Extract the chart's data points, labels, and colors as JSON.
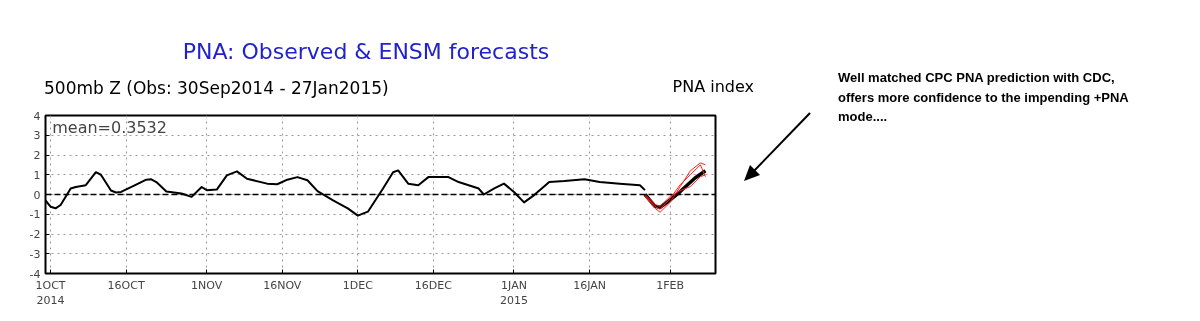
{
  "chart_data": {
    "type": "line",
    "title": "PNA: Observed & ENSM forecasts",
    "subtitle": "500mb Z (Obs: 30Sep2014 - 27Jan2015)",
    "annotations": [
      "mean=0.3532",
      "PNA index",
      "Well matched CPC PNA prediction with CDC, offers more confidence to the impending +PNA mode...."
    ],
    "x": [
      "2014-09-30",
      "2014-10-01",
      "2014-10-02",
      "2014-10-03",
      "2014-10-05",
      "2014-10-06",
      "2014-10-08",
      "2014-10-10",
      "2014-10-11",
      "2014-10-13",
      "2014-10-14",
      "2014-10-15",
      "2014-10-18",
      "2014-10-20",
      "2014-10-21",
      "2014-10-22",
      "2014-10-24",
      "2014-10-27",
      "2014-10-29",
      "2014-10-31",
      "2014-11-01",
      "2014-11-03",
      "2014-11-05",
      "2014-11-07",
      "2014-11-09",
      "2014-11-13",
      "2014-11-15",
      "2014-11-17",
      "2014-11-19",
      "2014-11-21",
      "2014-11-23",
      "2014-11-26",
      "2014-11-29",
      "2014-12-01",
      "2014-12-03",
      "2014-12-06",
      "2014-12-08",
      "2014-12-09",
      "2014-12-11",
      "2014-12-13",
      "2014-12-15",
      "2014-12-19",
      "2014-12-21",
      "2014-12-25",
      "2014-12-26",
      "2014-12-28",
      "2014-12-30",
      "2015-01-01",
      "2015-01-03",
      "2015-01-05",
      "2015-01-08",
      "2015-01-11",
      "2015-01-15",
      "2015-01-18",
      "2015-01-22",
      "2015-01-26",
      "2015-01-27"
    ],
    "series": [
      {
        "color": "#000000",
        "values": [
          -0.3,
          -0.62,
          -0.7,
          -0.53,
          0.3,
          0.38,
          0.47,
          1.13,
          1.0,
          0.2,
          0.1,
          0.13,
          0.5,
          0.75,
          0.77,
          0.63,
          0.15,
          0.05,
          -0.12,
          0.38,
          0.22,
          0.25,
          0.97,
          1.17,
          0.8,
          0.55,
          0.52,
          0.75,
          0.88,
          0.72,
          0.17,
          -0.28,
          -0.7,
          -1.07,
          -0.87,
          0.3,
          1.13,
          1.22,
          0.55,
          0.47,
          0.88,
          0.88,
          0.63,
          0.3,
          0.0,
          0.3,
          0.55,
          0.13,
          -0.4,
          -0.03,
          0.63,
          0.68,
          0.77,
          0.63,
          0.55,
          0.47,
          0.22
        ]
      },
      {
        "color": "#ff2020",
        "x": [
          "2015-01-27",
          "2015-01-29",
          "2015-01-30",
          "2015-02-01",
          "2015-02-03",
          "2015-02-05",
          "2015-02-07",
          "2015-02-08"
        ],
        "values": [
          -0.1,
          -0.7,
          -0.9,
          -0.4,
          0.4,
          1.2,
          1.6,
          1.5
        ]
      },
      {
        "color": "#ff2020",
        "x": [
          "2015-01-27",
          "2015-01-29",
          "2015-01-30",
          "2015-02-01",
          "2015-02-03",
          "2015-02-05",
          "2015-02-07",
          "2015-02-08"
        ],
        "values": [
          0.0,
          -0.5,
          -0.6,
          -0.1,
          0.2,
          0.4,
          0.9,
          1.0
        ]
      },
      {
        "color": "#ff2020",
        "x": [
          "2015-01-27",
          "2015-01-29",
          "2015-01-30",
          "2015-02-01",
          "2015-02-03",
          "2015-02-05",
          "2015-02-07",
          "2015-02-08"
        ],
        "values": [
          -0.05,
          -0.6,
          -0.75,
          -0.2,
          0.5,
          1.0,
          1.5,
          0.9
        ]
      },
      {
        "color": "#000000",
        "x": [
          "2015-01-27",
          "2015-01-29",
          "2015-01-30",
          "2015-02-01",
          "2015-02-03",
          "2015-02-06",
          "2015-02-08"
        ],
        "values": [
          0.0,
          -0.6,
          -0.65,
          -0.28,
          0.15,
          0.85,
          1.2
        ]
      }
    ],
    "xlim": [
      "2014-09-30",
      "2015-02-10"
    ],
    "xticks": [
      {
        "value": "2014-10-01",
        "label": "1OCT\n2014"
      },
      {
        "value": "2014-10-16",
        "label": "16OCT"
      },
      {
        "value": "2014-11-01",
        "label": "1NOV"
      },
      {
        "value": "2014-11-16",
        "label": "16NOV"
      },
      {
        "value": "2014-12-01",
        "label": "1DEC"
      },
      {
        "value": "2014-12-16",
        "label": "16DEC"
      },
      {
        "value": "2015-01-01",
        "label": "1JAN\n2015"
      },
      {
        "value": "2015-01-16",
        "label": "16JAN"
      },
      {
        "value": "2015-02-01",
        "label": "1FEB"
      }
    ],
    "ylim": [
      -4,
      4
    ],
    "yticks": [
      -4,
      -3,
      -2,
      -1,
      0,
      1,
      2,
      3,
      4
    ],
    "ref_lines": [
      {
        "axis": "y",
        "value": 0,
        "color": "#000000",
        "line_style": "dashed"
      }
    ],
    "grid": true
  }
}
